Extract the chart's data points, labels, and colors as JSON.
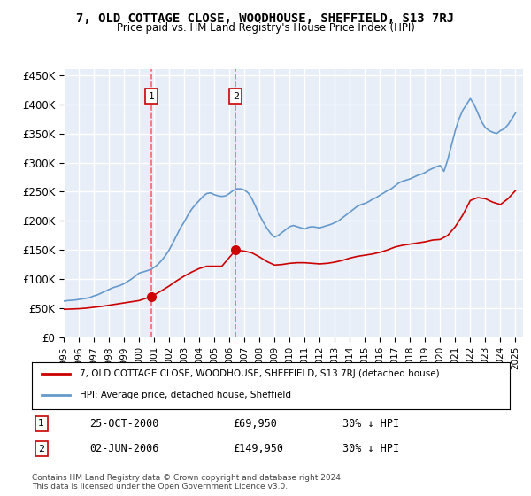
{
  "title": "7, OLD COTTAGE CLOSE, WOODHOUSE, SHEFFIELD, S13 7RJ",
  "subtitle": "Price paid vs. HM Land Registry's House Price Index (HPI)",
  "ylabel_ticks": [
    "£0",
    "£50K",
    "£100K",
    "£150K",
    "£200K",
    "£250K",
    "£300K",
    "£350K",
    "£400K",
    "£450K"
  ],
  "ytick_vals": [
    0,
    50000,
    100000,
    150000,
    200000,
    250000,
    300000,
    350000,
    400000,
    450000
  ],
  "ylim": [
    0,
    460000
  ],
  "xlim_start": 1995.0,
  "xlim_end": 2025.5,
  "background_color": "#ffffff",
  "plot_bg_color": "#e8eef8",
  "grid_color": "#ffffff",
  "transaction1": {
    "date_num": 2000.82,
    "price": 69950,
    "label": "1",
    "date_str": "25-OCT-2000",
    "price_str": "£69,950",
    "hpi_str": "30% ↓ HPI"
  },
  "transaction2": {
    "date_num": 2006.42,
    "price": 149950,
    "label": "2",
    "date_str": "02-JUN-2006",
    "price_str": "£149,950",
    "hpi_str": "30% ↓ HPI"
  },
  "red_line_color": "#cc0000",
  "blue_line_color": "#6699cc",
  "dashed_line_color": "#ff6666",
  "marker_color": "#cc0000",
  "legend_label_red": "7, OLD COTTAGE CLOSE, WOODHOUSE, SHEFFIELD, S13 7RJ (detached house)",
  "legend_label_blue": "HPI: Average price, detached house, Sheffield",
  "footnote": "Contains HM Land Registry data © Crown copyright and database right 2024.\nThis data is licensed under the Open Government Licence v3.0.",
  "hpi_data": {
    "years": [
      1995.0,
      1995.25,
      1995.5,
      1995.75,
      1996.0,
      1996.25,
      1996.5,
      1996.75,
      1997.0,
      1997.25,
      1997.5,
      1997.75,
      1998.0,
      1998.25,
      1998.5,
      1998.75,
      1999.0,
      1999.25,
      1999.5,
      1999.75,
      2000.0,
      2000.25,
      2000.5,
      2000.75,
      2001.0,
      2001.25,
      2001.5,
      2001.75,
      2002.0,
      2002.25,
      2002.5,
      2002.75,
      2003.0,
      2003.25,
      2003.5,
      2003.75,
      2004.0,
      2004.25,
      2004.5,
      2004.75,
      2005.0,
      2005.25,
      2005.5,
      2005.75,
      2006.0,
      2006.25,
      2006.5,
      2006.75,
      2007.0,
      2007.25,
      2007.5,
      2007.75,
      2008.0,
      2008.25,
      2008.5,
      2008.75,
      2009.0,
      2009.25,
      2009.5,
      2009.75,
      2010.0,
      2010.25,
      2010.5,
      2010.75,
      2011.0,
      2011.25,
      2011.5,
      2011.75,
      2012.0,
      2012.25,
      2012.5,
      2012.75,
      2013.0,
      2013.25,
      2013.5,
      2013.75,
      2014.0,
      2014.25,
      2014.5,
      2014.75,
      2015.0,
      2015.25,
      2015.5,
      2015.75,
      2016.0,
      2016.25,
      2016.5,
      2016.75,
      2017.0,
      2017.25,
      2017.5,
      2017.75,
      2018.0,
      2018.25,
      2018.5,
      2018.75,
      2019.0,
      2019.25,
      2019.5,
      2019.75,
      2020.0,
      2020.25,
      2020.5,
      2020.75,
      2021.0,
      2021.25,
      2021.5,
      2021.75,
      2022.0,
      2022.25,
      2022.5,
      2022.75,
      2023.0,
      2023.25,
      2023.5,
      2023.75,
      2024.0,
      2024.25,
      2024.5,
      2024.75,
      2025.0
    ],
    "values": [
      62000,
      63000,
      63500,
      64000,
      65000,
      66000,
      67000,
      68500,
      71000,
      73000,
      76000,
      79000,
      82000,
      85000,
      87000,
      89000,
      92000,
      96000,
      100000,
      105000,
      110000,
      112000,
      114000,
      116000,
      120000,
      125000,
      132000,
      140000,
      150000,
      162000,
      175000,
      188000,
      198000,
      210000,
      220000,
      228000,
      235000,
      242000,
      247000,
      248000,
      245000,
      243000,
      242000,
      243000,
      247000,
      252000,
      255000,
      255000,
      253000,
      248000,
      238000,
      224000,
      210000,
      198000,
      187000,
      178000,
      172000,
      175000,
      180000,
      185000,
      190000,
      192000,
      190000,
      188000,
      186000,
      189000,
      190000,
      189000,
      188000,
      190000,
      192000,
      194000,
      197000,
      200000,
      205000,
      210000,
      215000,
      220000,
      225000,
      228000,
      230000,
      233000,
      237000,
      240000,
      244000,
      248000,
      252000,
      255000,
      260000,
      265000,
      268000,
      270000,
      272000,
      275000,
      278000,
      280000,
      283000,
      287000,
      290000,
      293000,
      295000,
      285000,
      305000,
      330000,
      355000,
      375000,
      390000,
      400000,
      410000,
      400000,
      385000,
      370000,
      360000,
      355000,
      352000,
      350000,
      355000,
      358000,
      365000,
      375000,
      385000
    ]
  },
  "property_data": {
    "years": [
      1995.0,
      1995.5,
      1996.0,
      1996.5,
      1997.0,
      1997.5,
      1998.0,
      1998.5,
      1999.0,
      1999.5,
      2000.0,
      2000.82,
      2001.5,
      2002.0,
      2002.5,
      2003.0,
      2003.5,
      2004.0,
      2004.5,
      2005.0,
      2005.5,
      2006.42,
      2007.0,
      2007.5,
      2008.0,
      2008.5,
      2009.0,
      2009.5,
      2010.0,
      2010.5,
      2011.0,
      2011.5,
      2012.0,
      2012.5,
      2013.0,
      2013.5,
      2014.0,
      2014.5,
      2015.0,
      2015.5,
      2016.0,
      2016.5,
      2017.0,
      2017.5,
      2018.0,
      2018.5,
      2019.0,
      2019.5,
      2020.0,
      2020.5,
      2021.0,
      2021.5,
      2022.0,
      2022.5,
      2023.0,
      2023.5,
      2024.0,
      2024.5,
      2025.0
    ],
    "values": [
      48000,
      48500,
      49000,
      50000,
      51500,
      53000,
      55000,
      57000,
      59000,
      61000,
      63000,
      69950,
      80000,
      88000,
      97000,
      105000,
      112000,
      118000,
      122000,
      122000,
      122000,
      149950,
      148000,
      145000,
      138000,
      130000,
      124000,
      125000,
      127000,
      128000,
      128000,
      127000,
      126000,
      127000,
      129000,
      132000,
      136000,
      139000,
      141000,
      143000,
      146000,
      150000,
      155000,
      158000,
      160000,
      162000,
      164000,
      167000,
      168000,
      175000,
      190000,
      210000,
      235000,
      240000,
      238000,
      232000,
      228000,
      238000,
      252000
    ]
  }
}
